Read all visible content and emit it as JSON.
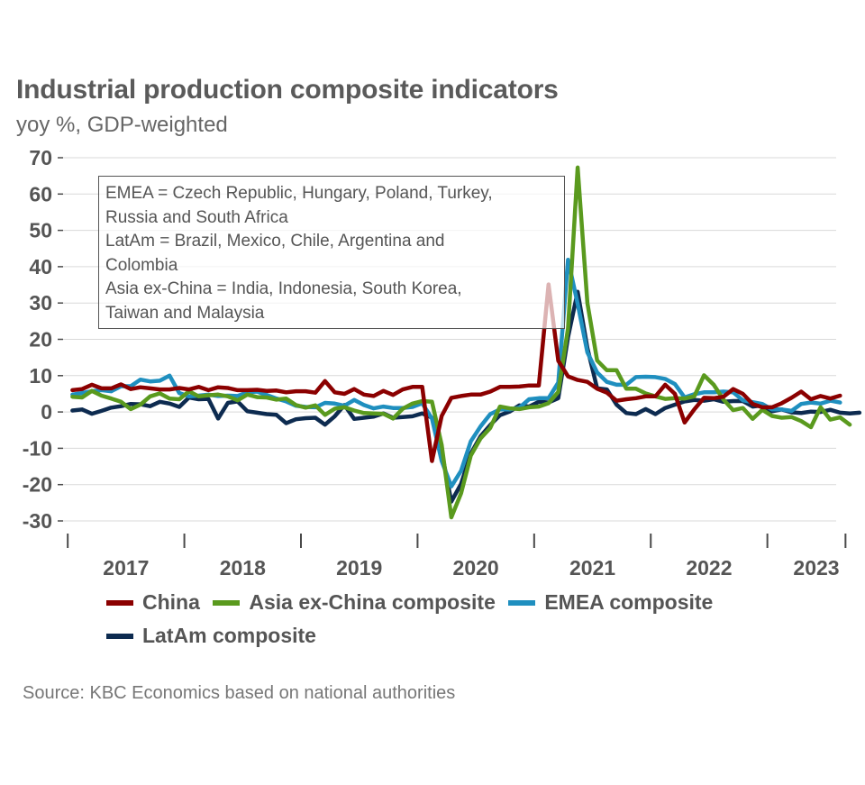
{
  "title": "Industrial production composite indicators",
  "subtitle": "yoy %, GDP-weighted",
  "source": "Source: KBC Economics based on national authorities",
  "note_lines": [
    "EMEA = Czech Republic, Hungary, Poland, Turkey,",
    "Russia and South Africa",
    "LatAm = Brazil, Mexico, Chile, Argentina and",
    "Colombia",
    "Asia ex-China = India, Indonesia, South Korea,",
    "Taiwan and Malaysia"
  ],
  "colors": {
    "China": "#8b0000",
    "Asia ex-China composite": "#5a9a1e",
    "EMEA composite": "#1f8fbf",
    "LatAm composite": "#0d2b50",
    "grid": "#d9d9d9",
    "axis": "#4a4a4a"
  },
  "chart_data": {
    "type": "line",
    "title": "Industrial production composite indicators",
    "subtitle": "yoy %, GDP-weighted",
    "ylim": [
      -30,
      70
    ],
    "yticks": [
      -30,
      -20,
      -10,
      0,
      10,
      20,
      30,
      40,
      50,
      60,
      70
    ],
    "xlim": [
      2016.96,
      2023.59
    ],
    "year_labels": [
      "2017",
      "2018",
      "2019",
      "2020",
      "2021",
      "2022",
      "2023"
    ],
    "year_label_x": [
      2017.5,
      2018.5,
      2019.5,
      2020.5,
      2021.5,
      2022.5,
      2023.42
    ],
    "year_ticks": [
      2017,
      2018,
      2019,
      2020,
      2021,
      2022,
      2023
    ],
    "end_tick": 2023.67,
    "x_start": 2017.04,
    "x_step": 0.0833333,
    "grid": true,
    "legend_position": "bottom",
    "series": [
      {
        "name": "China",
        "values": [
          6,
          6.3,
          7.5,
          6.5,
          6.5,
          7.6,
          6.3,
          6.8,
          6.5,
          6.2,
          6.2,
          6.6,
          6.2,
          6.9,
          6,
          6.8,
          6.6,
          6,
          6,
          6.1,
          5.8,
          5.9,
          5.4,
          5.7,
          5.7,
          5.3,
          8.5,
          5.4,
          5,
          6.3,
          4.8,
          4.4,
          5.8,
          4.7,
          6.2,
          6.9,
          6.9,
          -13.5,
          -1.1,
          3.9,
          4.4,
          4.8,
          4.8,
          5.6,
          6.9,
          6.9,
          7,
          7.3,
          7.3,
          35.1,
          14.1,
          9.8,
          8.8,
          8.3,
          6.4,
          5.3,
          3.1,
          3.5,
          3.8,
          4.3,
          4.3,
          7.5,
          5,
          -2.9,
          0.7,
          3.9,
          3.8,
          4.2,
          6.3,
          5,
          2.2,
          1.3,
          1.3,
          2.4,
          3.9,
          5.6,
          3.5,
          4.4,
          3.7,
          4.5
        ]
      },
      {
        "name": "Asia ex-China composite",
        "values": [
          4.2,
          4,
          5.8,
          4.5,
          3.7,
          2.8,
          0.8,
          2,
          4.3,
          5.1,
          3.7,
          3.5,
          5.7,
          4.3,
          4.6,
          4.8,
          4.3,
          3.2,
          4.8,
          4.1,
          4,
          3.4,
          3.7,
          1.9,
          1.2,
          1.8,
          -0.8,
          0.9,
          1.3,
          0.4,
          -0.3,
          -0.4,
          -0.5,
          -1.8,
          0.9,
          2.3,
          3,
          2.8,
          -9.1,
          -29,
          -22.4,
          -12,
          -7.3,
          -4.4,
          1.5,
          1,
          0.8,
          1.3,
          1.5,
          2.4,
          5.5,
          23,
          67.3,
          30,
          14.2,
          11.5,
          11.5,
          6.4,
          6.4,
          5.1,
          4.3,
          3.6,
          3.8,
          3.7,
          4.3,
          10.1,
          7.5,
          3.4,
          0.5,
          1.1,
          -1.9,
          0.6,
          -1.1,
          -1.6,
          -1.4,
          -2.5,
          -4.2,
          1.3,
          -2.1,
          -1.5,
          -3.5
        ]
      },
      {
        "name": "EMEA composite",
        "values": [
          4.8,
          5.2,
          5.7,
          6,
          5.7,
          7.1,
          7.1,
          8.9,
          8.4,
          8.6,
          10,
          5.2,
          4.3,
          4.5,
          4.8,
          4.4,
          4.5,
          4.4,
          5.4,
          5.6,
          4.7,
          3.7,
          2.9,
          1.7,
          1.4,
          1.3,
          2.5,
          2.3,
          1.7,
          3.3,
          1.9,
          1,
          1.5,
          1.1,
          1.1,
          1.4,
          2.4,
          -1.8,
          -13.5,
          -20.5,
          -16.2,
          -8.1,
          -4,
          -0.6,
          0.7,
          0.7,
          1.2,
          3.5,
          3.8,
          3.8,
          8.1,
          41.9,
          29.8,
          16.4,
          10.9,
          8.3,
          7.5,
          7.5,
          9.6,
          9.7,
          9.6,
          9.1,
          7.7,
          4,
          4.9,
          5.4,
          5.4,
          5.6,
          5.4,
          3.2,
          2.7,
          2.2,
          0.7,
          0.7,
          0.3,
          2.2,
          2.6,
          2.3,
          3.1,
          2.6
        ]
      },
      {
        "name": "LatAm composite",
        "values": [
          0.4,
          0.7,
          -0.5,
          0.3,
          1.2,
          1.6,
          2.2,
          2.1,
          1.6,
          2.8,
          2.3,
          1.4,
          4,
          3.5,
          3.6,
          -1.8,
          2.5,
          2.9,
          0.2,
          -0.2,
          -0.6,
          -0.8,
          -3.1,
          -2,
          -1.7,
          -1.6,
          -3.5,
          -1.2,
          1.9,
          -1.9,
          -1.6,
          -1.3,
          -0.4,
          -1.6,
          -1.4,
          -1.2,
          -0.4,
          -1.6,
          -11,
          -24.7,
          -19.8,
          -11.5,
          -6.7,
          -3.6,
          -0.9,
          0.1,
          1.8,
          1.5,
          2.8,
          2.6,
          3.8,
          20.6,
          33.1,
          17.6,
          6.5,
          6.2,
          2,
          -0.3,
          -0.6,
          0.8,
          -0.6,
          1.1,
          2,
          2.9,
          3.3,
          3.1,
          3.5,
          2.8,
          3,
          3,
          1.5,
          1.8,
          0.2,
          0.7,
          -0.1,
          -0.3,
          0.1,
          0,
          0.6,
          -0.2,
          -0.4,
          -0.2
        ]
      }
    ]
  }
}
